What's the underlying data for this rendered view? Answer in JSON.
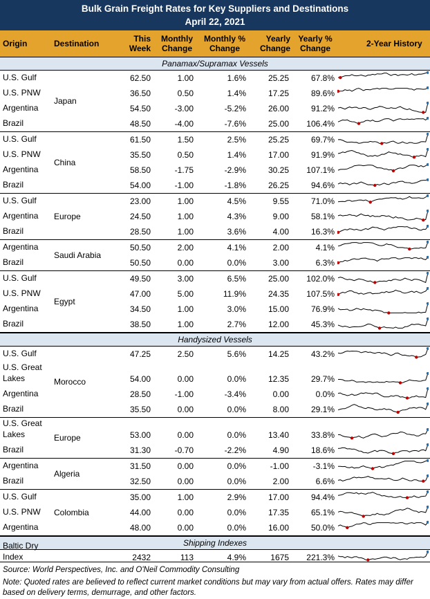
{
  "title": "Bulk Grain Freight Rates for Key Suppliers and Destinations",
  "date": "April 22, 2021",
  "headers": {
    "origin": "Origin",
    "destination": "Destination",
    "this_week": [
      "This",
      "Week"
    ],
    "monthly_change": [
      "Monthly",
      "Change"
    ],
    "monthly_pct_change": [
      "Monthly %",
      "Change"
    ],
    "yearly_change": [
      "Yearly",
      "Change"
    ],
    "yearly_pct_change": [
      "Yearly %",
      "Change"
    ],
    "history": "2-Year History"
  },
  "colors": {
    "title_bg": "#17375e",
    "header_bg": "#e3a32c",
    "section_bg": "#dce6f1",
    "sparkline": "#000000",
    "low_marker": "#c00000",
    "high_marker": "#1f6fb5"
  },
  "sections": [
    {
      "label": "Panamax/Supramax Vessels",
      "groups": [
        {
          "destination": "Japan",
          "rows": [
            {
              "origin": "U.S. Gulf",
              "this_week": "62.50",
              "monthly_change": "1.00",
              "monthly_pct": "1.6%",
              "yearly_change": "25.25",
              "yearly_pct": "67.8%"
            },
            {
              "origin": "U.S. PNW",
              "this_week": "36.50",
              "monthly_change": "0.50",
              "monthly_pct": "1.4%",
              "yearly_change": "17.25",
              "yearly_pct": "89.6%"
            },
            {
              "origin": "Argentina",
              "this_week": "54.50",
              "monthly_change": "-3.00",
              "monthly_pct": "-5.2%",
              "yearly_change": "26.00",
              "yearly_pct": "91.2%"
            },
            {
              "origin": "Brazil",
              "this_week": "48.50",
              "monthly_change": "-4.00",
              "monthly_pct": "-7.6%",
              "yearly_change": "25.00",
              "yearly_pct": "106.4%"
            }
          ]
        },
        {
          "destination": "China",
          "rows": [
            {
              "origin": "U.S. Gulf",
              "this_week": "61.50",
              "monthly_change": "1.50",
              "monthly_pct": "2.5%",
              "yearly_change": "25.25",
              "yearly_pct": "69.7%"
            },
            {
              "origin": "U.S. PNW",
              "this_week": "35.50",
              "monthly_change": "0.50",
              "monthly_pct": "1.4%",
              "yearly_change": "17.00",
              "yearly_pct": "91.9%"
            },
            {
              "origin": "Argentina",
              "this_week": "58.50",
              "monthly_change": "-1.75",
              "monthly_pct": "-2.9%",
              "yearly_change": "30.25",
              "yearly_pct": "107.1%"
            },
            {
              "origin": "Brazil",
              "this_week": "54.00",
              "monthly_change": "-1.00",
              "monthly_pct": "-1.8%",
              "yearly_change": "26.25",
              "yearly_pct": "94.6%"
            }
          ]
        },
        {
          "destination": "Europe",
          "rows": [
            {
              "origin": "U.S. Gulf",
              "this_week": "23.00",
              "monthly_change": "1.00",
              "monthly_pct": "4.5%",
              "yearly_change": "9.55",
              "yearly_pct": "71.0%"
            },
            {
              "origin": "Argentina",
              "this_week": "24.50",
              "monthly_change": "1.00",
              "monthly_pct": "4.3%",
              "yearly_change": "9.00",
              "yearly_pct": "58.1%"
            },
            {
              "origin": "Brazil",
              "this_week": "28.50",
              "monthly_change": "1.00",
              "monthly_pct": "3.6%",
              "yearly_change": "4.00",
              "yearly_pct": "16.3%"
            }
          ]
        },
        {
          "destination": "Saudi Arabia",
          "rows": [
            {
              "origin": "Argentina",
              "this_week": "50.50",
              "monthly_change": "2.00",
              "monthly_pct": "4.1%",
              "yearly_change": "2.00",
              "yearly_pct": "4.1%"
            },
            {
              "origin": "Brazil",
              "this_week": "50.50",
              "monthly_change": "0.00",
              "monthly_pct": "0.0%",
              "yearly_change": "3.00",
              "yearly_pct": "6.3%"
            }
          ]
        },
        {
          "destination": "Egypt",
          "rows": [
            {
              "origin": "U.S. Gulf",
              "this_week": "49.50",
              "monthly_change": "3.00",
              "monthly_pct": "6.5%",
              "yearly_change": "25.00",
              "yearly_pct": "102.0%"
            },
            {
              "origin": "U.S. PNW",
              "this_week": "47.00",
              "monthly_change": "5.00",
              "monthly_pct": "11.9%",
              "yearly_change": "24.35",
              "yearly_pct": "107.5%"
            },
            {
              "origin": "Argentina",
              "this_week": "34.50",
              "monthly_change": "1.00",
              "monthly_pct": "3.0%",
              "yearly_change": "15.00",
              "yearly_pct": "76.9%"
            },
            {
              "origin": "Brazil",
              "this_week": "38.50",
              "monthly_change": "1.00",
              "monthly_pct": "2.7%",
              "yearly_change": "12.00",
              "yearly_pct": "45.3%"
            }
          ]
        }
      ]
    },
    {
      "label": "Handysized Vessels",
      "groups": [
        {
          "destination": "Morocco",
          "rows": [
            {
              "origin": "U.S. Gulf",
              "this_week": "47.25",
              "monthly_change": "2.50",
              "monthly_pct": "5.6%",
              "yearly_change": "14.25",
              "yearly_pct": "43.2%"
            },
            {
              "origin": "U.S. Great Lakes",
              "this_week": "54.00",
              "monthly_change": "0.00",
              "monthly_pct": "0.0%",
              "yearly_change": "12.35",
              "yearly_pct": "29.7%",
              "tall": true
            },
            {
              "origin": "Argentina",
              "this_week": "28.50",
              "monthly_change": "-1.00",
              "monthly_pct": "-3.4%",
              "yearly_change": "0.00",
              "yearly_pct": "0.0%"
            },
            {
              "origin": "Brazil",
              "this_week": "35.50",
              "monthly_change": "0.00",
              "monthly_pct": "0.0%",
              "yearly_change": "8.00",
              "yearly_pct": "29.1%"
            }
          ]
        },
        {
          "destination": "Europe",
          "rows": [
            {
              "origin": "U.S. Great Lakes",
              "this_week": "53.00",
              "monthly_change": "0.00",
              "monthly_pct": "0.0%",
              "yearly_change": "13.40",
              "yearly_pct": "33.8%",
              "tall": true
            },
            {
              "origin": "Brazil",
              "this_week": "31.30",
              "monthly_change": "-0.70",
              "monthly_pct": "-2.2%",
              "yearly_change": "4.90",
              "yearly_pct": "18.6%"
            }
          ]
        },
        {
          "destination": "Algeria",
          "rows": [
            {
              "origin": "Argentina",
              "this_week": "31.50",
              "monthly_change": "0.00",
              "monthly_pct": "0.0%",
              "yearly_change": "-1.00",
              "yearly_pct": "-3.1%"
            },
            {
              "origin": "Brazil",
              "this_week": "32.50",
              "monthly_change": "0.00",
              "monthly_pct": "0.0%",
              "yearly_change": "2.00",
              "yearly_pct": "6.6%"
            }
          ]
        },
        {
          "destination": "Colombia",
          "rows": [
            {
              "origin": "U.S. Gulf",
              "this_week": "35.00",
              "monthly_change": "1.00",
              "monthly_pct": "2.9%",
              "yearly_change": "17.00",
              "yearly_pct": "94.4%"
            },
            {
              "origin": "U.S. PNW",
              "this_week": "44.00",
              "monthly_change": "0.00",
              "monthly_pct": "0.0%",
              "yearly_change": "17.35",
              "yearly_pct": "65.1%"
            },
            {
              "origin": "Argentina",
              "this_week": "48.00",
              "monthly_change": "0.00",
              "monthly_pct": "0.0%",
              "yearly_change": "16.00",
              "yearly_pct": "50.0%"
            }
          ]
        }
      ]
    },
    {
      "label": "Shipping Indexes",
      "groups": [
        {
          "destination": "",
          "rows": [
            {
              "origin": "Baltic Dry Index",
              "this_week": "2432",
              "monthly_change": "113",
              "monthly_pct": "4.9%",
              "yearly_change": "1675",
              "yearly_pct": "221.3%"
            }
          ]
        }
      ]
    }
  ],
  "footer": {
    "source": "Source: World Perspectives, Inc. and O'Neil Commodity Consulting",
    "note": "Note: Quoted rates are believed to reflect current market conditions but may vary from actual offers. Rates may differ based on delivery terms, demurrage, and other factors."
  }
}
